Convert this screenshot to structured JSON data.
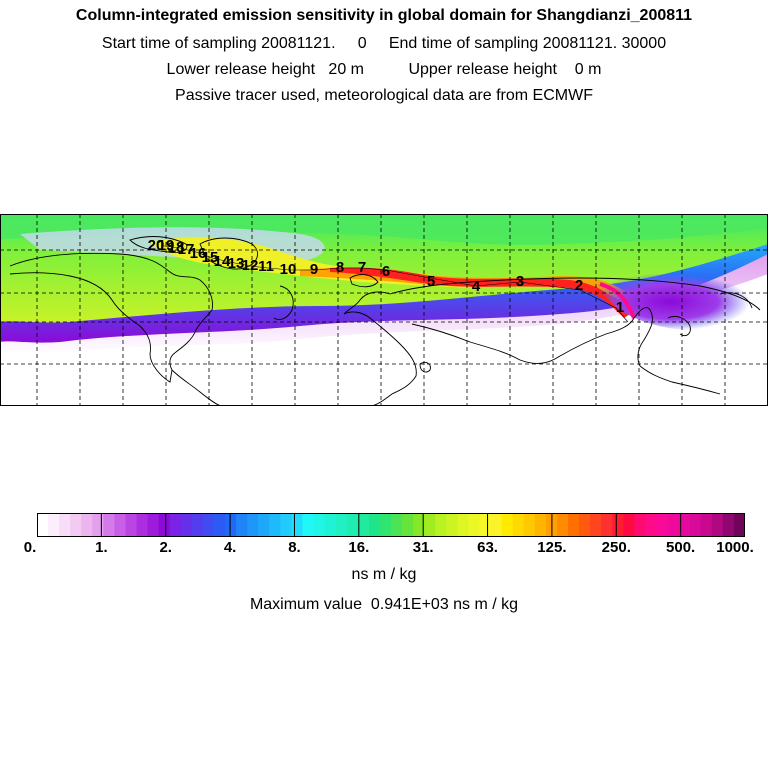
{
  "header": {
    "title": "Column-integrated emission sensitivity in global domain for Shangdianzi_200811",
    "sampling_line": "Start time of sampling 20081121.     0     End time of sampling 20081121. 30000",
    "release_line": "Lower release height   20 m          Upper release height    0 m",
    "tracer_line": "Passive tracer used, meteorological data are from ECMWF"
  },
  "map": {
    "trajectory_labels": [
      "1",
      "2",
      "3",
      "4",
      "5",
      "6",
      "7",
      "8",
      "9",
      "10",
      "11",
      "12",
      "13",
      "14",
      "15",
      "16",
      "17",
      "18",
      "19",
      "20"
    ],
    "colors": {
      "land_outline": "#000000",
      "grid": "#000000",
      "track_core": "#ff0000"
    }
  },
  "colorbar": {
    "tick_labels": [
      "0.",
      "1.",
      "2.",
      "4.",
      "8.",
      "16.",
      "31.",
      "63.",
      "125.",
      "250.",
      "500.",
      "1000."
    ],
    "colors": [
      "#ffffff",
      "#fdeefd",
      "#f8ddf8",
      "#f2caf2",
      "#ecb5f0",
      "#e3a0ef",
      "#d57ae9",
      "#c85fe6",
      "#bb45e3",
      "#ac2ee0",
      "#9d1cdc",
      "#8c0ad7",
      "#7a22e6",
      "#6630ea",
      "#523eee",
      "#3f4cf2",
      "#2c5af4",
      "#2068f6",
      "#1f84f8",
      "#1f96f9",
      "#1fa8fa",
      "#1fbafb",
      "#1fccfc",
      "#1fdefd",
      "#20f8f8",
      "#20f5e6",
      "#20f3d4",
      "#20f0c2",
      "#20edb0",
      "#20ea9e",
      "#20e48a",
      "#30e470",
      "#4ae456",
      "#66e43c",
      "#84e826",
      "#a0ec20",
      "#b8f220",
      "#cbf422",
      "#ddf624",
      "#ecf826",
      "#f6f828",
      "#fbf22a",
      "#ffea00",
      "#ffda00",
      "#ffc800",
      "#ffb400",
      "#ffa000",
      "#ff8c00",
      "#ff7000",
      "#ff5a10",
      "#ff4420",
      "#ff3030",
      "#ff1c30",
      "#ff0a40",
      "#ff0a70",
      "#ff0a88",
      "#fa0a98",
      "#f00a9c",
      "#e40a9e",
      "#d80a98",
      "#c8088e",
      "#b00880",
      "#900670",
      "#700458"
    ]
  },
  "units": "ns m / kg",
  "max_value": "Maximum value  0.941E+03 ns m / kg"
}
